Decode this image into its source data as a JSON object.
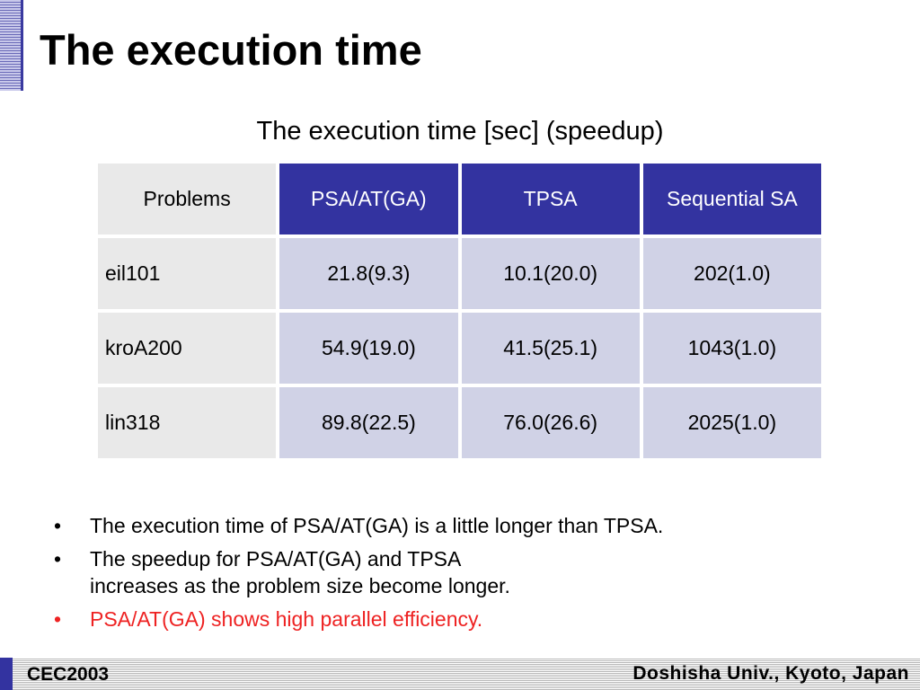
{
  "slide": {
    "title": "The execution time",
    "accent_color": "#3333a0",
    "highlight_color": "#ee2222"
  },
  "table": {
    "caption": "The execution time [sec] (speedup)",
    "header_color": "#3333a0",
    "cell_color": "#d0d2e6",
    "headers": [
      "Problems",
      "PSA/AT(GA)",
      "TPSA",
      "Sequential SA"
    ],
    "rows": [
      {
        "problem": "eil101",
        "psa_at_ga": "21.8(9.3)",
        "tpsa": "10.1(20.0)",
        "sequential_sa": "202(1.0)"
      },
      {
        "problem": "kroA200",
        "psa_at_ga": "54.9(19.0)",
        "tpsa": "41.5(25.1)",
        "sequential_sa": "1043(1.0)"
      },
      {
        "problem": "lin318",
        "psa_at_ga": "89.8(22.5)",
        "tpsa": "76.0(26.6)",
        "sequential_sa": "2025(1.0)"
      }
    ]
  },
  "bullets": [
    {
      "marker": "•",
      "text": "The execution time of PSA/AT(GA) is a little longer than TPSA."
    },
    {
      "marker": "•",
      "text": "The speedup for PSA/AT(GA) and TPSA\nincreases as the problem size become longer."
    },
    {
      "marker": "•",
      "text": "PSA/AT(GA) shows high parallel efficiency."
    }
  ],
  "footer": {
    "left": "CEC2003",
    "right": "Doshisha Univ., Kyoto, Japan"
  }
}
